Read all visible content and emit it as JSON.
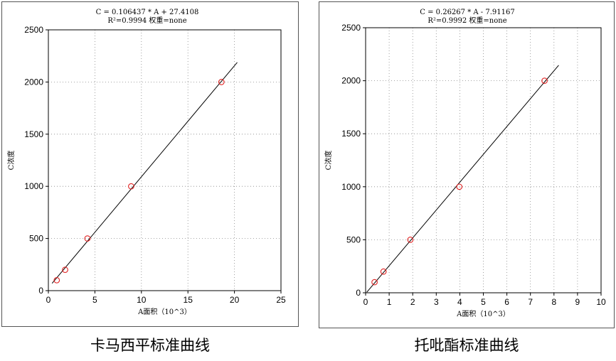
{
  "chart_data": [
    {
      "type": "scatter",
      "equation": "C = 0.106437 * A + 27.4108",
      "r2_text": "R²=0.9994 权重=none",
      "xlabel": "A面积（10^3）",
      "ylabel": "C浓度",
      "xlim": [
        0,
        25
      ],
      "ylim": [
        0,
        2500
      ],
      "xticks": [
        "0",
        "5",
        "10",
        "15",
        "20",
        "25"
      ],
      "yticks": [
        "0",
        "500",
        "1000",
        "1500",
        "2000",
        "2500"
      ],
      "grid": true,
      "points": [
        {
          "x": 0.9,
          "y": 100
        },
        {
          "x": 1.8,
          "y": 200
        },
        {
          "x": 4.2,
          "y": 500
        },
        {
          "x": 8.9,
          "y": 1000
        },
        {
          "x": 18.6,
          "y": 2000
        }
      ],
      "fit": {
        "slope": 106.437,
        "intercept": 27.4108,
        "x_range": [
          0.4,
          20.3
        ]
      },
      "caption": "卡马西平标准曲线"
    },
    {
      "type": "scatter",
      "equation": "C = 0.26267 * A - 7.91167",
      "r2_text": "R²=0.9992 权重=none",
      "xlabel": "A面积（10^3）",
      "ylabel": "C浓度",
      "xlim": [
        0,
        10
      ],
      "ylim": [
        0,
        2500
      ],
      "xticks": [
        "0",
        "1",
        "2",
        "3",
        "4",
        "5",
        "6",
        "7",
        "8",
        "9",
        "10"
      ],
      "yticks": [
        "0",
        "500",
        "1000",
        "1500",
        "2000",
        "2500"
      ],
      "grid": true,
      "points": [
        {
          "x": 0.38,
          "y": 100
        },
        {
          "x": 0.76,
          "y": 200
        },
        {
          "x": 1.9,
          "y": 500
        },
        {
          "x": 3.98,
          "y": 1000
        },
        {
          "x": 7.6,
          "y": 2000
        }
      ],
      "fit": {
        "slope": 262.67,
        "intercept": -7.91167,
        "x_range": [
          0.05,
          8.2
        ]
      },
      "caption": "托吡酯标准曲线"
    }
  ]
}
